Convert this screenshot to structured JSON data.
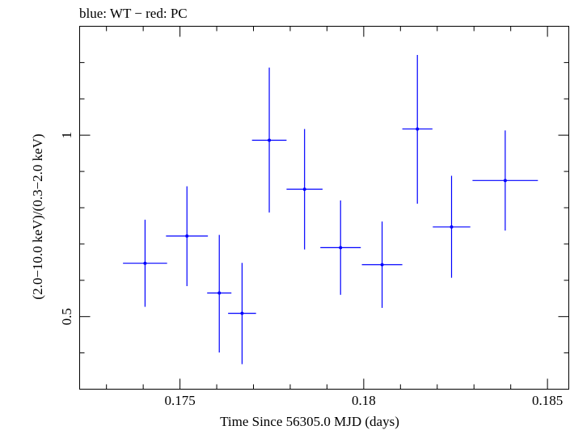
{
  "chart_data": {
    "type": "scatter",
    "title": "blue: WT − red: PC",
    "xlabel": "Time Since 56305.0 MJD (days)",
    "ylabel": "(2.0−10.0 keV)/(0.3−2.0 keV)",
    "xlim": [
      0.17227,
      0.18558
    ],
    "ylim": [
      0.3,
      1.3
    ],
    "x_ticks": [
      0.175,
      0.18,
      0.185
    ],
    "x_tick_labels": [
      "0.175",
      "0.18",
      "0.185"
    ],
    "y_ticks": [
      0.5,
      1.0
    ],
    "y_tick_labels": [
      "0.5",
      "1"
    ],
    "grid": false,
    "series": [
      {
        "name": "WT",
        "color": "#0000ff",
        "points": [
          {
            "x": 0.17405,
            "y": 0.647,
            "xerr": 0.0006,
            "ylo": 0.527,
            "yhi": 0.767
          },
          {
            "x": 0.17519,
            "y": 0.722,
            "xerr": 0.00057,
            "ylo": 0.584,
            "yhi": 0.859
          },
          {
            "x": 0.17607,
            "y": 0.565,
            "xerr": 0.00033,
            "ylo": 0.401,
            "yhi": 0.725
          },
          {
            "x": 0.17669,
            "y": 0.509,
            "xerr": 0.00038,
            "ylo": 0.369,
            "yhi": 0.648
          },
          {
            "x": 0.17743,
            "y": 0.986,
            "xerr": 0.00047,
            "ylo": 0.787,
            "yhi": 1.186
          },
          {
            "x": 0.17839,
            "y": 0.851,
            "xerr": 0.00049,
            "ylo": 0.685,
            "yhi": 1.017
          },
          {
            "x": 0.17937,
            "y": 0.69,
            "xerr": 0.00055,
            "ylo": 0.56,
            "yhi": 0.82
          },
          {
            "x": 0.1805,
            "y": 0.643,
            "xerr": 0.00055,
            "ylo": 0.524,
            "yhi": 0.762
          },
          {
            "x": 0.18146,
            "y": 1.017,
            "xerr": 0.00041,
            "ylo": 0.811,
            "yhi": 1.221
          },
          {
            "x": 0.18239,
            "y": 0.747,
            "xerr": 0.00051,
            "ylo": 0.607,
            "yhi": 0.888
          },
          {
            "x": 0.18385,
            "y": 0.875,
            "xerr": 0.00089,
            "ylo": 0.737,
            "yhi": 1.013
          }
        ]
      }
    ]
  }
}
